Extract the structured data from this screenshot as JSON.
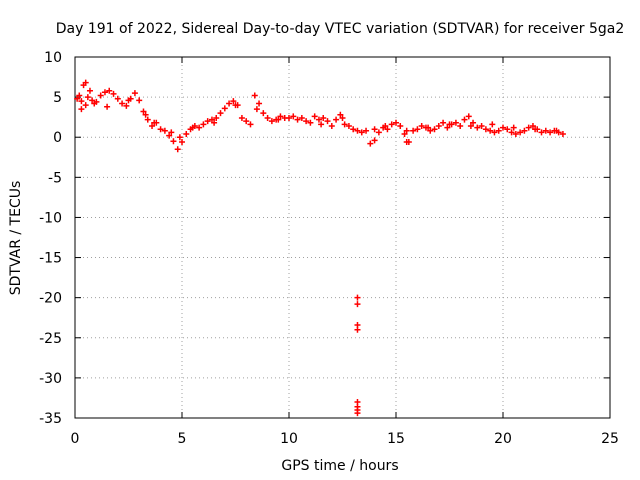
{
  "chart_data": {
    "type": "scatter",
    "title": "Day 191 of 2022, Sidereal Day-to-day VTEC variation (SDTVAR) for receiver 5ga2",
    "xlabel": "GPS time / hours",
    "ylabel": "SDTVAR / TECUs",
    "xlim": [
      0,
      25
    ],
    "ylim": [
      -35,
      10
    ],
    "xticks": [
      0,
      5,
      10,
      15,
      20,
      25
    ],
    "yticks": [
      10,
      5,
      0,
      -5,
      -10,
      -15,
      -20,
      -25,
      -30,
      -35
    ],
    "grid": true,
    "marker": "+",
    "color": "#ff0000",
    "series": [
      {
        "name": "SDTVAR",
        "x": [
          0.1,
          0.2,
          0.3,
          0.4,
          0.5,
          0.6,
          0.8,
          1.0,
          1.2,
          1.4,
          1.6,
          1.8,
          2.0,
          2.2,
          2.4,
          2.6,
          2.8,
          3.0,
          3.2,
          3.4,
          3.6,
          3.8,
          4.0,
          4.2,
          4.4,
          4.6,
          4.8,
          5.0,
          5.2,
          5.4,
          5.6,
          5.8,
          6.0,
          6.2,
          6.4,
          6.6,
          6.8,
          7.0,
          7.2,
          7.4,
          7.6,
          7.8,
          8.0,
          8.2,
          8.4,
          8.6,
          8.8,
          9.0,
          9.2,
          9.4,
          9.6,
          9.8,
          10.0,
          10.2,
          10.4,
          10.6,
          10.8,
          11.0,
          11.2,
          11.4,
          11.6,
          11.8,
          12.0,
          12.2,
          12.4,
          12.6,
          12.8,
          13.0,
          13.2,
          13.4,
          13.6,
          13.8,
          14.0,
          14.2,
          14.4,
          14.6,
          14.8,
          15.0,
          15.2,
          15.4,
          15.6,
          15.8,
          16.0,
          16.2,
          16.4,
          16.6,
          16.8,
          17.0,
          17.2,
          17.4,
          17.6,
          17.8,
          18.0,
          18.2,
          18.4,
          18.6,
          18.8,
          19.0,
          19.2,
          19.4,
          19.6,
          19.8,
          20.0,
          20.2,
          20.4,
          20.6,
          20.8,
          21.0,
          21.2,
          21.4,
          21.6,
          21.8,
          22.0,
          22.2,
          22.4,
          22.6,
          22.8,
          0.3,
          0.5,
          0.7,
          0.9,
          1.5,
          2.5,
          3.3,
          3.7,
          4.5,
          4.9,
          5.5,
          6.5,
          7.5,
          8.5,
          9.5,
          11.5,
          12.5,
          14.5,
          15.5,
          16.5,
          17.5,
          18.5,
          19.5,
          20.5,
          21.5,
          22.5,
          14.0,
          15.5,
          13.2,
          13.2,
          13.2,
          13.2,
          13.2,
          13.2,
          13.2,
          13.2
        ],
        "y": [
          4.8,
          5.2,
          4.5,
          6.5,
          6.8,
          5.0,
          4.6,
          4.4,
          5.2,
          5.6,
          5.8,
          5.4,
          4.8,
          4.2,
          3.9,
          4.8,
          5.5,
          4.6,
          3.2,
          2.2,
          1.4,
          1.8,
          1.0,
          0.8,
          0.2,
          -0.5,
          -1.5,
          -0.6,
          0.4,
          1.0,
          1.4,
          1.2,
          1.6,
          2.0,
          2.2,
          2.4,
          3.0,
          3.6,
          4.2,
          4.5,
          4.0,
          2.4,
          2.0,
          1.6,
          5.2,
          4.2,
          3.0,
          2.4,
          2.0,
          2.2,
          2.6,
          2.4,
          2.4,
          2.6,
          2.2,
          2.4,
          2.0,
          1.8,
          2.6,
          2.2,
          2.4,
          2.0,
          1.4,
          2.2,
          2.8,
          1.6,
          1.4,
          1.0,
          0.8,
          0.6,
          0.8,
          -0.8,
          1.0,
          0.6,
          1.2,
          1.0,
          1.6,
          1.8,
          1.4,
          0.4,
          -0.6,
          0.8,
          1.0,
          1.4,
          1.2,
          0.8,
          1.0,
          1.4,
          1.8,
          1.2,
          1.6,
          1.8,
          1.4,
          2.2,
          2.6,
          1.8,
          1.2,
          1.4,
          1.0,
          0.8,
          0.6,
          0.8,
          1.2,
          1.0,
          0.6,
          0.4,
          0.6,
          0.8,
          1.2,
          1.4,
          1.0,
          0.6,
          0.8,
          0.6,
          0.8,
          0.6,
          0.4,
          3.5,
          4.0,
          5.8,
          4.2,
          3.8,
          4.6,
          2.8,
          1.8,
          0.6,
          0.0,
          1.2,
          1.8,
          4.0,
          3.5,
          2.2,
          1.6,
          2.4,
          1.4,
          0.8,
          1.2,
          1.6,
          1.4,
          1.6,
          1.2,
          1.0,
          0.8,
          -0.4,
          -0.6,
          -20.0,
          -20.8,
          -23.4,
          -24.0,
          -33.0,
          -33.6,
          -34.0,
          -34.4
        ]
      }
    ]
  }
}
